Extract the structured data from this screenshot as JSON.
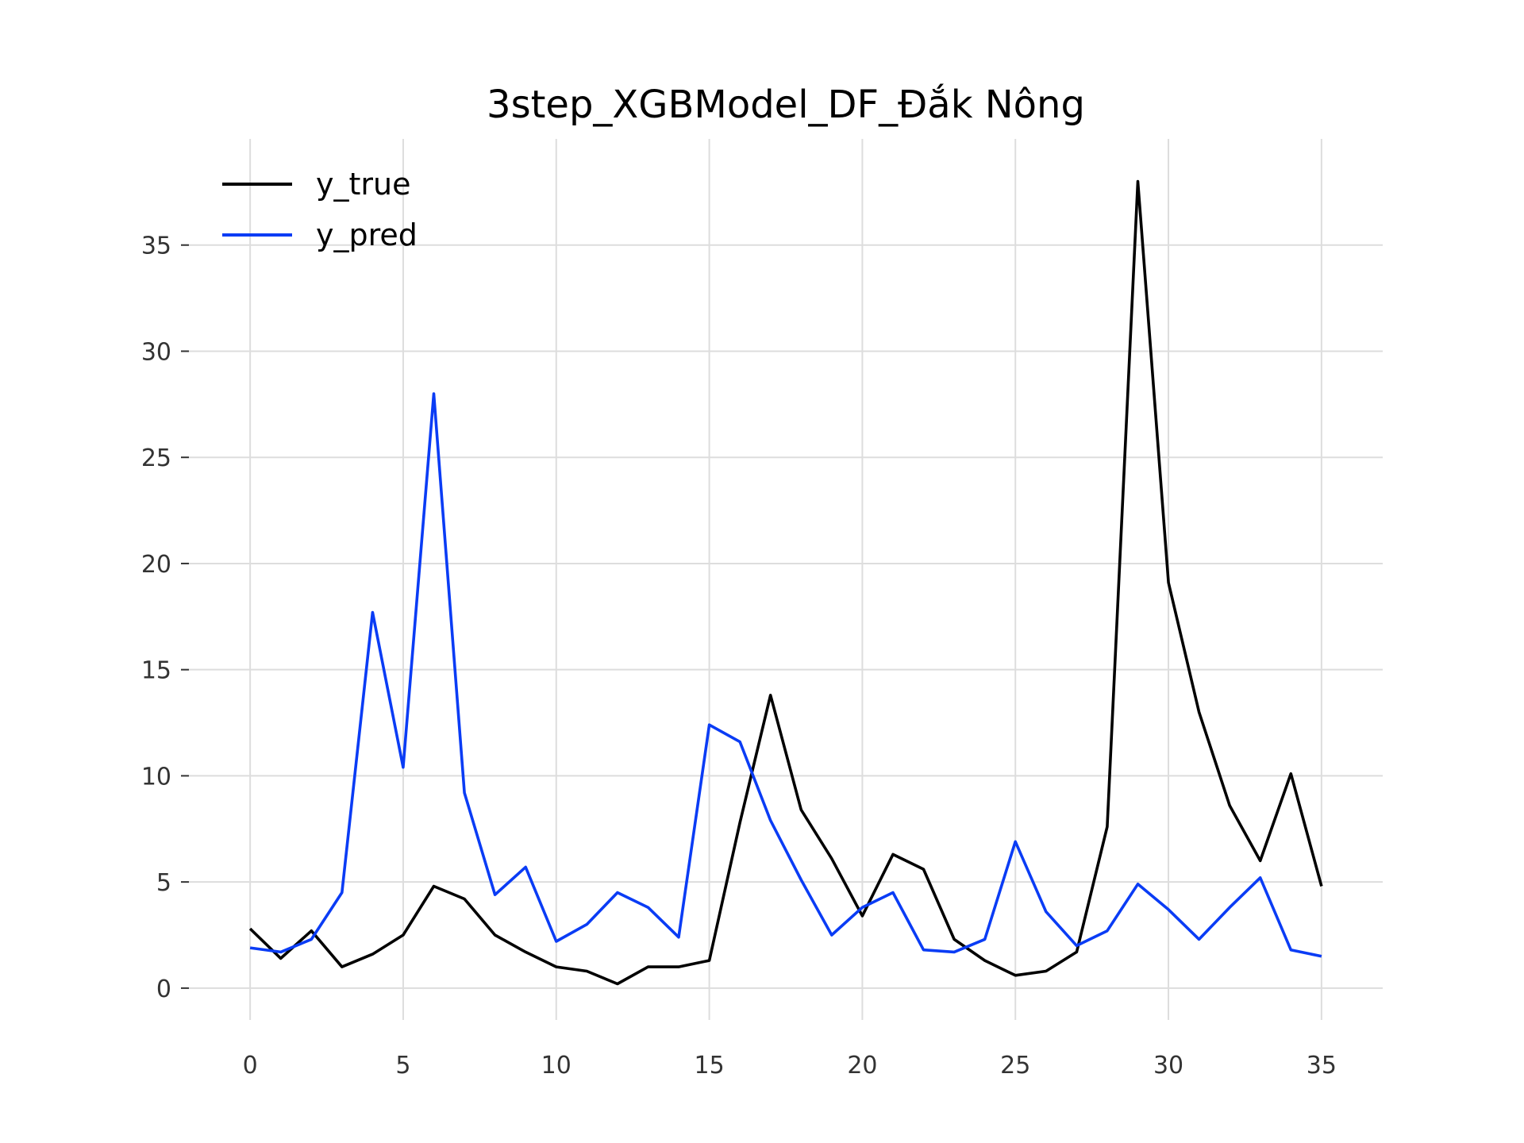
{
  "chart_data": {
    "type": "line",
    "title": "3step_XGBModel_DF_Đắk Nông",
    "xlabel": "",
    "ylabel": "",
    "xlim": [
      -2,
      37
    ],
    "ylim": [
      -1.5,
      40
    ],
    "xticks": [
      0,
      5,
      10,
      15,
      20,
      25,
      30,
      35
    ],
    "yticks": [
      0,
      5,
      10,
      15,
      20,
      25,
      30,
      35
    ],
    "grid": true,
    "legend_position": "top-left",
    "x": [
      0,
      1,
      2,
      3,
      4,
      5,
      6,
      7,
      8,
      9,
      10,
      11,
      12,
      13,
      14,
      15,
      16,
      17,
      18,
      19,
      20,
      21,
      22,
      23,
      24,
      25,
      26,
      27,
      28,
      29,
      30,
      31,
      32,
      33,
      34,
      35
    ],
    "series": [
      {
        "name": "y_true",
        "color": "#000000",
        "values": [
          2.8,
          1.4,
          2.7,
          1.0,
          1.6,
          2.5,
          4.8,
          4.2,
          2.5,
          1.7,
          1.0,
          0.8,
          0.2,
          1.0,
          1.0,
          1.3,
          7.8,
          13.8,
          8.4,
          6.1,
          3.4,
          6.3,
          5.6,
          2.3,
          1.3,
          0.6,
          0.8,
          1.7,
          7.6,
          38.0,
          19.1,
          13.0,
          8.6,
          6.0,
          10.1,
          4.8
        ]
      },
      {
        "name": "y_pred",
        "color": "#0a3cf5",
        "values": [
          1.9,
          1.7,
          2.3,
          4.5,
          17.7,
          10.4,
          28.0,
          9.2,
          4.4,
          5.7,
          2.2,
          3.0,
          4.5,
          3.8,
          2.4,
          12.4,
          11.6,
          7.9,
          5.1,
          2.5,
          3.8,
          4.5,
          1.8,
          1.7,
          2.3,
          6.9,
          3.6,
          2.0,
          2.7,
          4.9,
          3.7,
          2.3,
          3.8,
          5.2,
          1.8,
          1.5
        ]
      }
    ]
  }
}
